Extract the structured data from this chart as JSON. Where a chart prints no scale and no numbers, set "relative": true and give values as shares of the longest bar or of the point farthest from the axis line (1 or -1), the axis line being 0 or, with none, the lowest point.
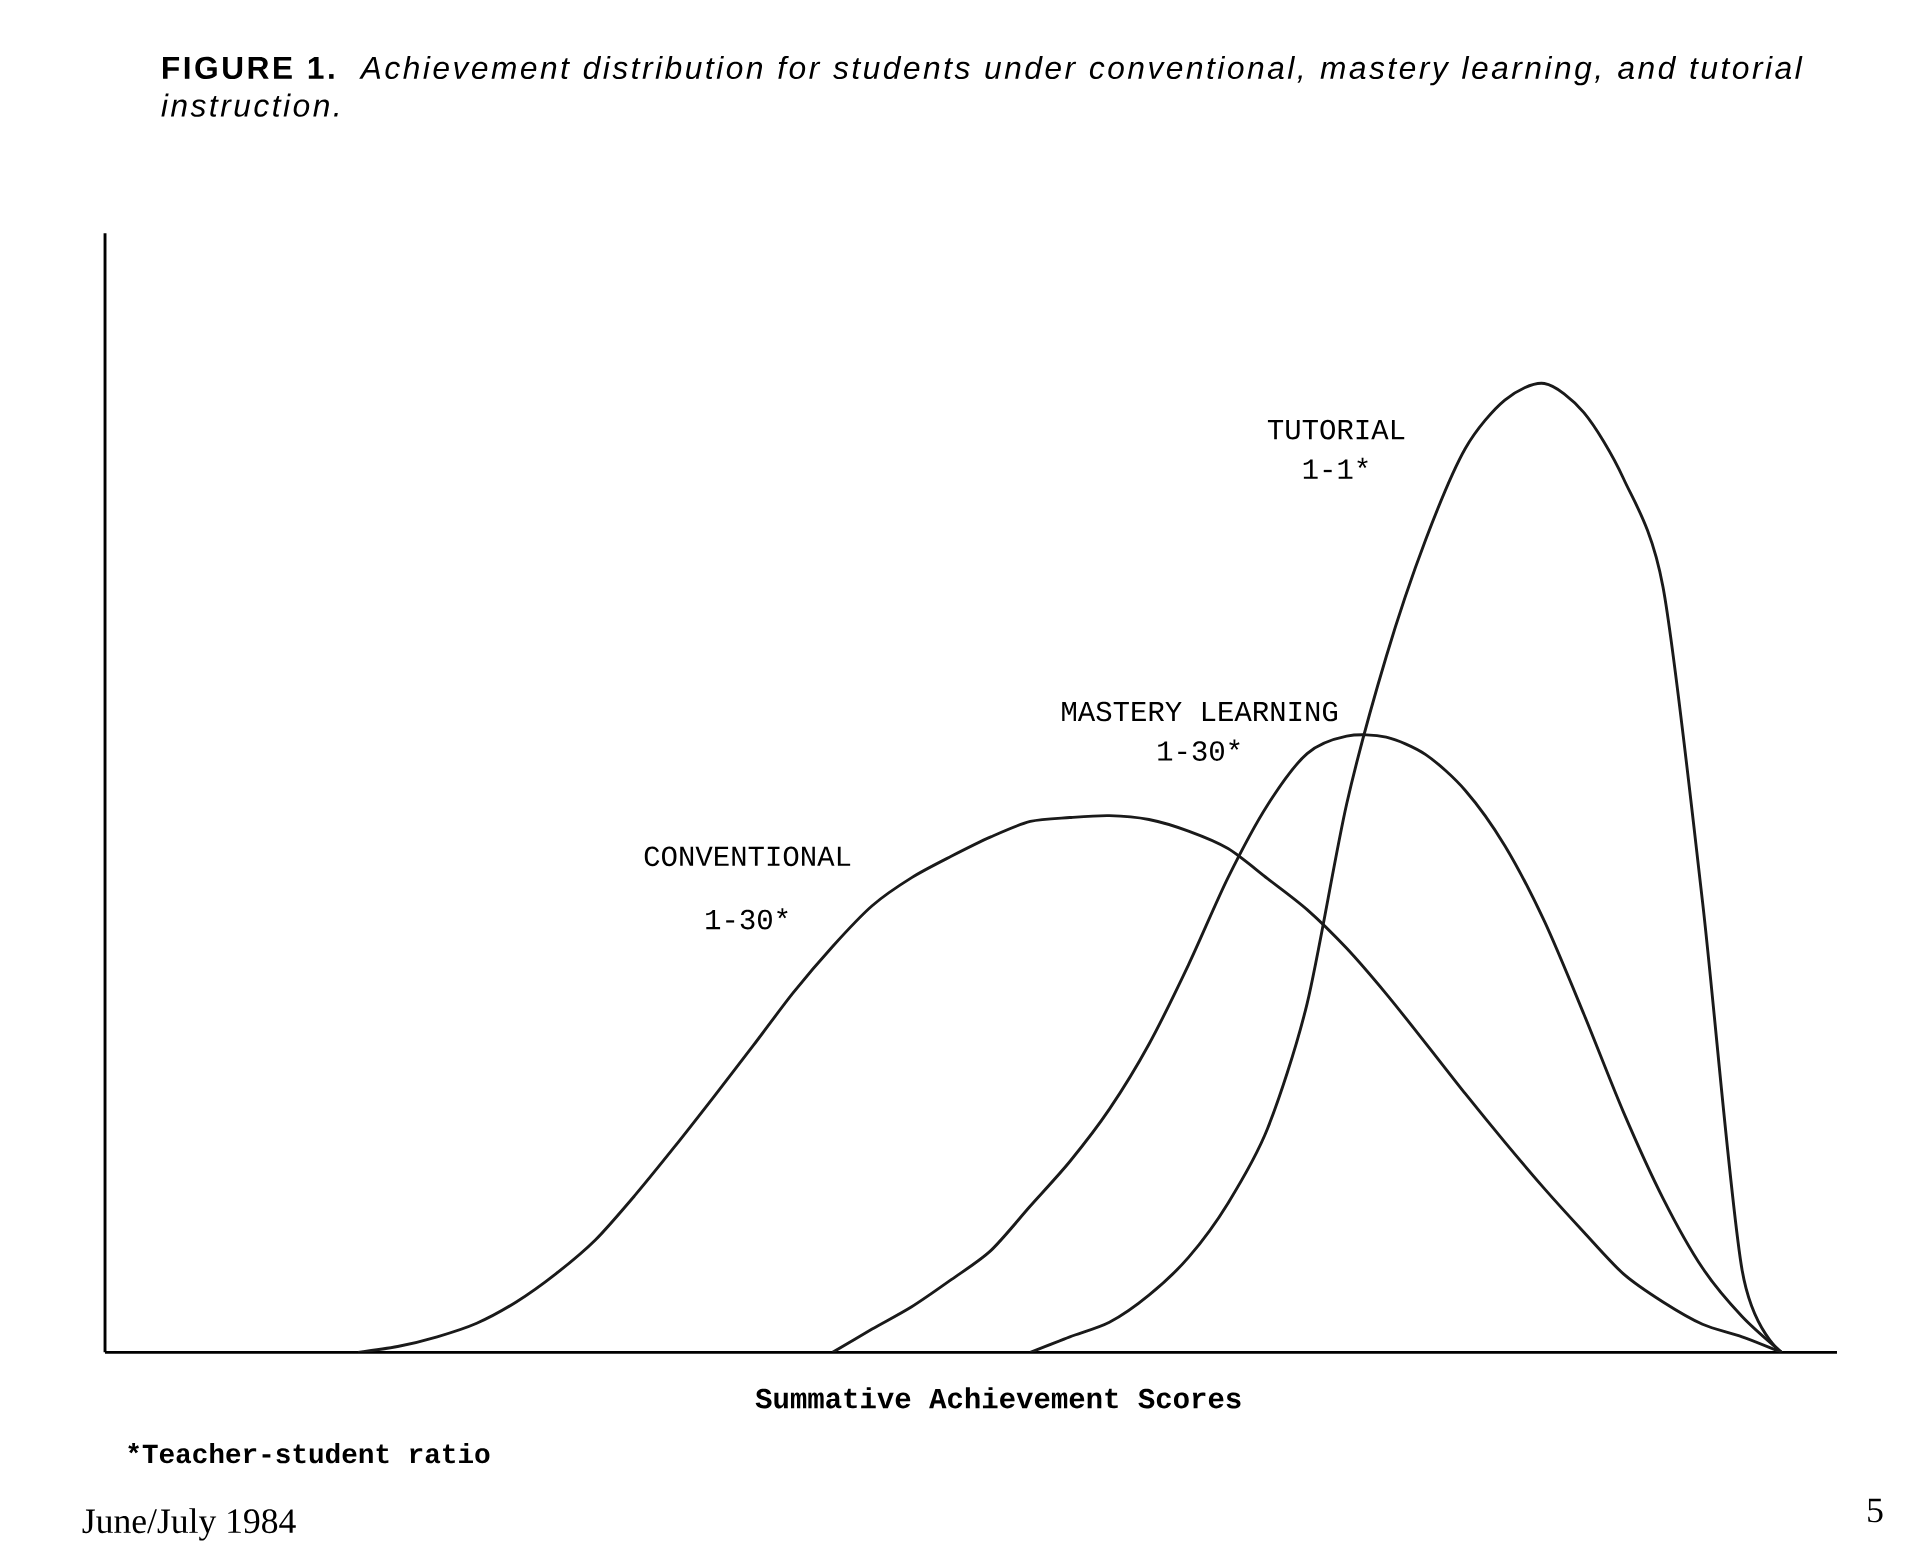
{
  "chart_data": {
    "type": "line",
    "relative": true,
    "title": "**FIGURE 1.** *Achievement distribution for students under conventional, mastery learning, and tutorial instruction.*",
    "xlabel": "Summative Achievement Scores",
    "categories": [
      null,
      null,
      null,
      null,
      null,
      null,
      null,
      null,
      null,
      null,
      null,
      null,
      null,
      null,
      null,
      null,
      null,
      null,
      null,
      null,
      null,
      null,
      null,
      null,
      null,
      null,
      null,
      null,
      null,
      null,
      null,
      null,
      null,
      null,
      null,
      null,
      null
    ],
    "series": [
      {
        "name": "CONVENTIONAL 1-30*",
        "color": "#1a1a1a",
        "values": [
          0,
          0.006,
          0.016,
          0.03,
          0.052,
          0.081,
          0.116,
          0.162,
          0.212,
          0.264,
          0.317,
          0.371,
          0.419,
          0.461,
          0.49,
          0.512,
          0.532,
          0.548,
          0.552,
          0.554,
          0.55,
          0.538,
          0.52,
          0.489,
          0.457,
          0.417,
          0.37,
          0.319,
          0.267,
          0.217,
          0.169,
          0.124,
          0.081,
          0.052,
          0.029,
          0.016,
          0
        ]
      },
      {
        "name": "MASTERY LEARNING 1-30*",
        "color": "#1a1a1a",
        "values": [
          null,
          null,
          null,
          null,
          null,
          null,
          null,
          null,
          null,
          null,
          null,
          null,
          0,
          0.024,
          0.047,
          0.075,
          0.105,
          0.151,
          0.197,
          0.251,
          0.318,
          0.4,
          0.49,
          0.565,
          0.618,
          0.636,
          0.635,
          0.617,
          0.58,
          0.523,
          0.445,
          0.349,
          0.248,
          0.159,
          0.087,
          0.037,
          0
        ]
      },
      {
        "name": "TUTORIAL 1-1*",
        "color": "#1a1a1a",
        "values": [
          null,
          null,
          null,
          null,
          null,
          null,
          null,
          null,
          null,
          null,
          null,
          null,
          null,
          null,
          null,
          null,
          null,
          0,
          0.016,
          0.031,
          0.059,
          0.098,
          0.154,
          0.231,
          0.36,
          0.566,
          0.718,
          0.839,
          0.933,
          0.983,
          1,
          0.97,
          0.902,
          0.79,
          0.465,
          0.085,
          0
        ]
      }
    ],
    "annotations": [
      "*Teacher-student ratio",
      "June/July 1984",
      "5"
    ]
  }
}
